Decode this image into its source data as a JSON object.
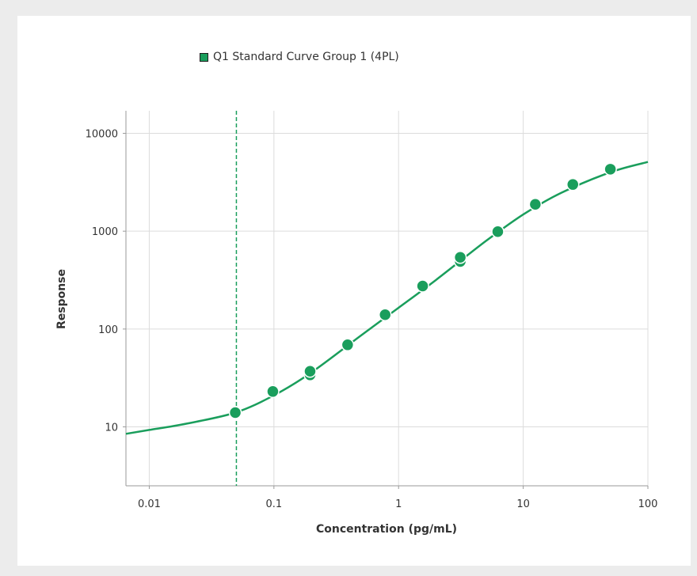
{
  "chart_data": {
    "type": "scatter",
    "legend": {
      "label": "Q1 Standard Curve Group 1 (4PL)",
      "position": "top-center"
    },
    "xlabel": "Concentration (pg/mL)",
    "ylabel": "Response",
    "xscale": "log",
    "yscale": "log",
    "xlim": [
      0.0065,
      100
    ],
    "ylim": [
      2.5,
      17000
    ],
    "xticks": [
      0.01,
      0.1,
      1,
      10,
      100
    ],
    "xtick_labels": [
      "0.01",
      "0.1",
      "1",
      "10",
      "100"
    ],
    "yticks": [
      10,
      100,
      1000,
      10000
    ],
    "ytick_labels": [
      "10",
      "100",
      "1000",
      "10000"
    ],
    "grid": true,
    "color": "#1a9e5c",
    "series": [
      {
        "name": "Q1 Standard Curve Group 1 (4PL)",
        "points": [
          {
            "x": 0.049,
            "y": 14
          },
          {
            "x": 0.098,
            "y": 23
          },
          {
            "x": 0.195,
            "y": 34
          },
          {
            "x": 0.195,
            "y": 37
          },
          {
            "x": 0.39,
            "y": 69
          },
          {
            "x": 0.78,
            "y": 140
          },
          {
            "x": 1.56,
            "y": 275
          },
          {
            "x": 3.125,
            "y": 490
          },
          {
            "x": 3.125,
            "y": 540
          },
          {
            "x": 6.25,
            "y": 990
          },
          {
            "x": 12.5,
            "y": 1880
          },
          {
            "x": 25,
            "y": 3000
          },
          {
            "x": 50,
            "y": 4300
          }
        ],
        "fit": {
          "model": "4PL",
          "curve": [
            {
              "x": 0.0065,
              "y": 8.5
            },
            {
              "x": 0.01,
              "y": 9.3
            },
            {
              "x": 0.02,
              "y": 10.8
            },
            {
              "x": 0.049,
              "y": 14
            },
            {
              "x": 0.1,
              "y": 21
            },
            {
              "x": 0.2,
              "y": 36
            },
            {
              "x": 0.5,
              "y": 86
            },
            {
              "x": 1,
              "y": 165
            },
            {
              "x": 2,
              "y": 318
            },
            {
              "x": 5,
              "y": 790
            },
            {
              "x": 10,
              "y": 1480
            },
            {
              "x": 20,
              "y": 2450
            },
            {
              "x": 50,
              "y": 4000
            },
            {
              "x": 100,
              "y": 5100
            }
          ]
        }
      }
    ],
    "vline": {
      "x": 0.05,
      "style": "dashed"
    }
  }
}
